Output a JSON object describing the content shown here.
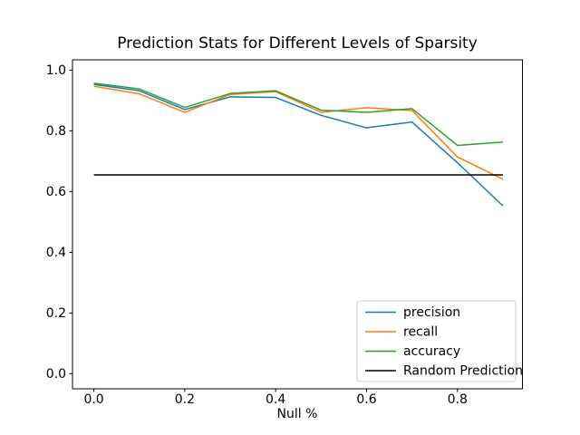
{
  "chart_data": {
    "type": "line",
    "title": "Prediction Stats for Different Levels of Sparsity",
    "xlabel": "Null %",
    "ylabel": "",
    "grid": false,
    "legend_position": "lower right",
    "xlim": [
      -0.047,
      0.943
    ],
    "ylim": [
      -0.0496,
      1.034
    ],
    "xticks": [
      0.0,
      0.2,
      0.4,
      0.6,
      0.8
    ],
    "xtick_labels": [
      "0.0",
      "0.2",
      "0.4",
      "0.6",
      "0.8"
    ],
    "yticks": [
      0.0,
      0.2,
      0.4,
      0.6,
      0.8,
      1.0
    ],
    "ytick_labels": [
      "0.0",
      "0.2",
      "0.4",
      "0.6",
      "0.8",
      "1.0"
    ],
    "x": [
      0.0,
      0.1,
      0.2,
      0.3,
      0.4,
      0.5,
      0.6,
      0.7,
      0.8,
      0.9
    ],
    "series": [
      {
        "name": "precision",
        "color": "#1f77b4",
        "values": [
          0.953,
          0.932,
          0.87,
          0.912,
          0.91,
          0.851,
          0.81,
          0.829,
          0.695,
          0.553
        ]
      },
      {
        "name": "recall",
        "color": "#ff7f0e",
        "values": [
          0.947,
          0.922,
          0.861,
          0.92,
          0.929,
          0.861,
          0.876,
          0.867,
          0.714,
          0.641
        ]
      },
      {
        "name": "accuracy",
        "color": "#2ca02c",
        "values": [
          0.957,
          0.938,
          0.877,
          0.923,
          0.932,
          0.868,
          0.861,
          0.873,
          0.752,
          0.763
        ]
      },
      {
        "name": "Random Prediction",
        "color": "#000000",
        "x": [
          0.0,
          0.9
        ],
        "values": [
          0.655,
          0.655
        ]
      }
    ]
  }
}
